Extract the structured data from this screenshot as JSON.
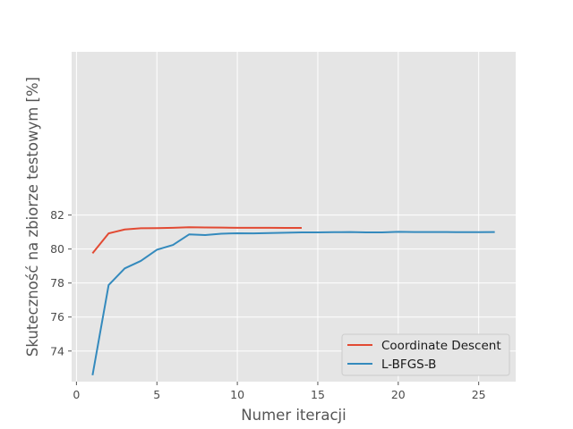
{
  "chart_data": {
    "type": "line",
    "title": "",
    "xlabel": "Numer iteracji",
    "ylabel": "Skuteczność na zbiorze testowym [%]",
    "xlim": [
      -0.3,
      27.3
    ],
    "ylim": [
      72.2,
      91.6
    ],
    "xticks": [
      0,
      5,
      10,
      15,
      20,
      25
    ],
    "yticks": [
      74,
      76,
      78,
      80,
      82
    ],
    "grid": true,
    "legend_position": "lower-right",
    "series": [
      {
        "name": "Coordinate Descent",
        "color": "#e24a33",
        "x": [
          1,
          2,
          3,
          4,
          5,
          6,
          7,
          8,
          9,
          10,
          11,
          12,
          13,
          14
        ],
        "y": [
          79.75,
          80.92,
          81.15,
          81.22,
          81.23,
          81.25,
          81.28,
          81.27,
          81.26,
          81.25,
          81.25,
          81.25,
          81.24,
          81.24
        ]
      },
      {
        "name": "L-BFGS-B",
        "color": "#348abd",
        "x": [
          1,
          2,
          3,
          4,
          5,
          6,
          7,
          8,
          9,
          10,
          11,
          12,
          13,
          14,
          15,
          16,
          17,
          18,
          19,
          20,
          21,
          22,
          23,
          24,
          25,
          26
        ],
        "y": [
          72.58,
          77.88,
          78.86,
          79.3,
          79.96,
          80.24,
          80.86,
          80.82,
          80.9,
          80.93,
          80.92,
          80.94,
          80.96,
          80.98,
          80.98,
          80.99,
          81.0,
          80.98,
          80.98,
          81.01,
          81.0,
          81.0,
          81.0,
          80.99,
          80.99,
          81.0
        ]
      }
    ]
  }
}
